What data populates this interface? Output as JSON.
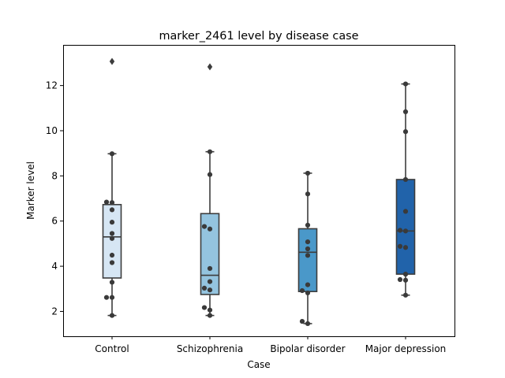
{
  "chart_data": {
    "type": "box",
    "title": "marker_2461 level by disease case",
    "xlabel": "Case",
    "ylabel": "Marker level",
    "ylim": [
      0.9,
      13.8
    ],
    "yticks": [
      2,
      4,
      6,
      8,
      10,
      12
    ],
    "grid": false,
    "categories": [
      "Control",
      "Schizophrenia",
      "Bipolar disorder",
      "Major depression"
    ],
    "boxes": [
      {
        "category": "Control",
        "color": "#d6e6f4",
        "whisker_low": 1.82,
        "q1": 3.48,
        "median": 5.3,
        "q3": 6.73,
        "whisker_high": 8.98,
        "outliers": [
          13.07
        ]
      },
      {
        "category": "Schizophrenia",
        "color": "#94c4df",
        "whisker_low": 1.82,
        "q1": 2.75,
        "median": 3.6,
        "q3": 6.33,
        "whisker_high": 9.07,
        "outliers": [
          12.83
        ]
      },
      {
        "category": "Bipolar disorder",
        "color": "#4a98c9",
        "whisker_low": 1.46,
        "q1": 2.88,
        "median": 4.62,
        "q3": 5.66,
        "whisker_high": 8.12,
        "outliers": []
      },
      {
        "category": "Major depression",
        "color": "#2163aa",
        "whisker_low": 2.72,
        "q1": 3.65,
        "median": 5.56,
        "q3": 7.84,
        "whisker_high": 12.07,
        "outliers": []
      }
    ],
    "points": [
      {
        "category": "Control",
        "values": [
          1.82,
          2.62,
          2.62,
          3.29,
          4.16,
          4.49,
          5.23,
          5.45,
          5.95,
          6.5,
          6.82,
          6.84,
          8.98
        ]
      },
      {
        "category": "Schizophrenia",
        "values": [
          1.82,
          2.06,
          2.17,
          2.95,
          3.03,
          3.32,
          3.9,
          5.65,
          5.76,
          8.06,
          9.07
        ]
      },
      {
        "category": "Bipolar disorder",
        "values": [
          1.46,
          1.56,
          2.82,
          2.92,
          3.18,
          4.48,
          4.77,
          5.08,
          5.82,
          7.2,
          8.12
        ]
      },
      {
        "category": "Major depression",
        "values": [
          2.72,
          3.38,
          3.41,
          3.65,
          4.83,
          4.88,
          5.56,
          5.59,
          6.43,
          7.84,
          9.96,
          10.84,
          12.07
        ]
      }
    ]
  }
}
